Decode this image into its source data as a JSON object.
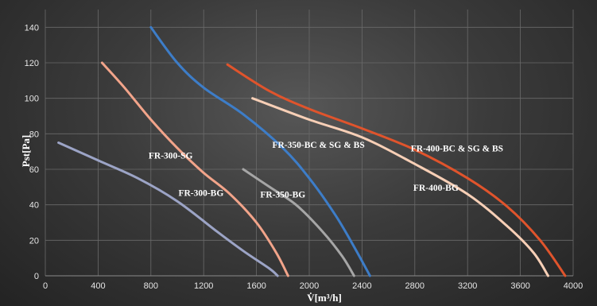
{
  "chart_data": {
    "type": "line",
    "xlim": [
      0,
      4000
    ],
    "ylim": [
      0,
      150
    ],
    "xticks": [
      0,
      400,
      800,
      1200,
      1600,
      2000,
      2400,
      2800,
      3200,
      3600,
      4000
    ],
    "yticks": [
      0,
      20,
      40,
      60,
      80,
      100,
      120,
      140
    ],
    "grid": true,
    "xlabel": "V̇[m³/h]",
    "ylabel": "Pst[Pa]",
    "series": [
      {
        "name": "FR-300-BG",
        "color": "#9ca4c6",
        "x": [
          100,
          400,
          700,
          1000,
          1300,
          1500,
          1700,
          1760
        ],
        "y": [
          75,
          65,
          55,
          42,
          25,
          14,
          4,
          0
        ]
      },
      {
        "name": "FR-300-SG",
        "color": "#f2a48a",
        "x": [
          430,
          600,
          800,
          1000,
          1200,
          1400,
          1600,
          1750,
          1840
        ],
        "y": [
          120,
          106,
          88,
          72,
          58,
          46,
          30,
          13,
          0
        ]
      },
      {
        "name": "FR-350-BC & SG & BS",
        "color": "#3d7dc8",
        "x": [
          800,
          1000,
          1200,
          1500,
          1800,
          2000,
          2200,
          2350,
          2460
        ],
        "y": [
          140,
          120,
          106,
          91,
          72,
          55,
          34,
          15,
          0
        ]
      },
      {
        "name": "FR-350-BG",
        "color": "#a6a6a6",
        "x": [
          1500,
          1700,
          1900,
          2100,
          2250,
          2340
        ],
        "y": [
          60,
          50,
          40,
          25,
          11,
          0
        ]
      },
      {
        "name": "FR-400-BC & SG & BS",
        "color": "#e0542c",
        "x": [
          1380,
          1700,
          2000,
          2400,
          2800,
          3200,
          3500,
          3750,
          3940
        ],
        "y": [
          119,
          104,
          94,
          83,
          71,
          55,
          39,
          20,
          0
        ]
      },
      {
        "name": "FR-400-BG",
        "color": "#f7cfb6",
        "x": [
          1570,
          2000,
          2400,
          2800,
          3200,
          3500,
          3700,
          3810
        ],
        "y": [
          100,
          88,
          78,
          63,
          46,
          28,
          13,
          0
        ]
      }
    ],
    "annotations": [
      {
        "text": "FR-300-BG",
        "x": 1180,
        "y": 45
      },
      {
        "text": "FR-300-SG",
        "x": 950,
        "y": 66
      },
      {
        "text": "FR-350-BC & SG & BS",
        "x": 2070,
        "y": 72
      },
      {
        "text": "FR-350-BG",
        "x": 1800,
        "y": 44
      },
      {
        "text": "FR-400-BC & SG & BS",
        "x": 3120,
        "y": 70
      },
      {
        "text": "FR-400-BG",
        "x": 2960,
        "y": 48
      }
    ]
  }
}
